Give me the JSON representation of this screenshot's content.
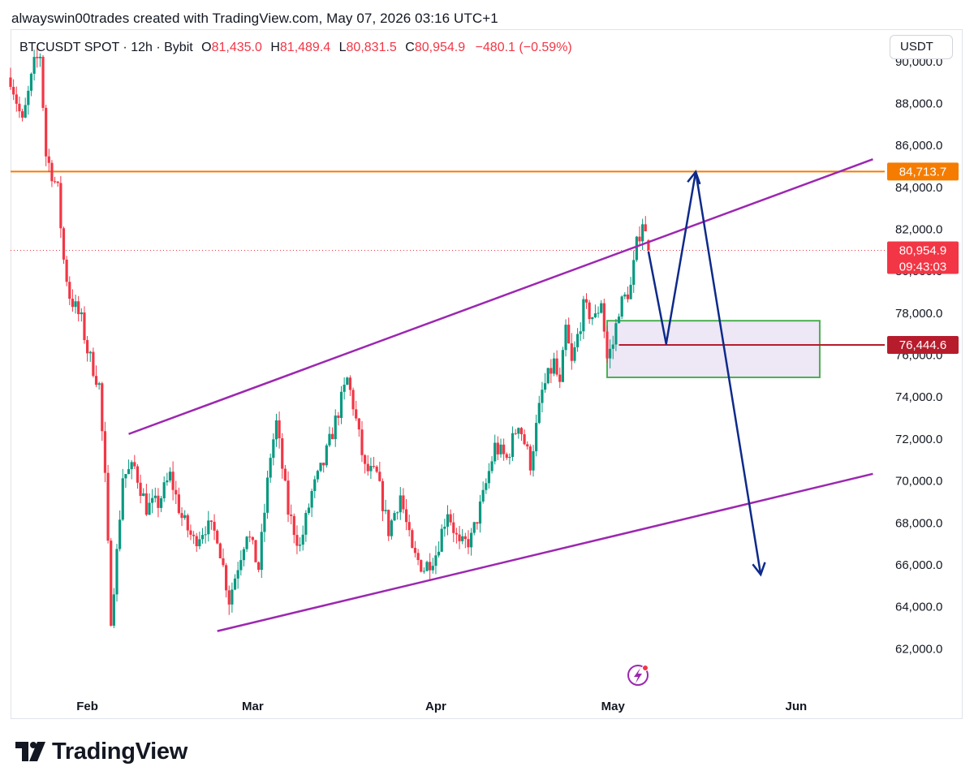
{
  "header": {
    "credit": "alwayswin00trades created with TradingView.com, May 07, 2026 03:16 UTC+1"
  },
  "symbol": {
    "name": "BTCUSDT SPOT · 12h · Bybit",
    "open_label": "O",
    "open": "81,435.0",
    "high_label": "H",
    "high": "81,489.4",
    "low_label": "L",
    "low": "80,831.5",
    "close_label": "C",
    "close": "80,954.9",
    "change": "−480.1 (−0.59%)"
  },
  "currency_button": "USDT",
  "brand": "TradingView",
  "colors": {
    "up": "#089981",
    "down": "#f23645",
    "channel": "#9c27b0",
    "resistance": "#f57c00",
    "support_box": "#4caf50",
    "support_box_fill": "#ede7f6",
    "support_line": "#b71c2c",
    "projection": "#0d2a8a",
    "price_badge": "#f23645"
  },
  "chart_data": {
    "type": "candlestick",
    "interval": "12h",
    "y_range": [
      60000,
      91500
    ],
    "y_ticks": [
      {
        "v": 62000,
        "label": "62,000.0"
      },
      {
        "v": 64000,
        "label": "64,000.0"
      },
      {
        "v": 66000,
        "label": "66,000.0"
      },
      {
        "v": 68000,
        "label": "68,000.0"
      },
      {
        "v": 70000,
        "label": "70,000.0"
      },
      {
        "v": 72000,
        "label": "72,000.0"
      },
      {
        "v": 74000,
        "label": "74,000.0"
      },
      {
        "v": 76000,
        "label": "76,000.0"
      },
      {
        "v": 78000,
        "label": "78,000.0"
      },
      {
        "v": 80000,
        "label": "80,000.0"
      },
      {
        "v": 82000,
        "label": "82,000.0"
      },
      {
        "v": 84000,
        "label": "84,000.0"
      },
      {
        "v": 86000,
        "label": "86,000.0"
      },
      {
        "v": 88000,
        "label": "88,000.0"
      },
      {
        "v": 90000,
        "label": "90,000.0"
      }
    ],
    "x_ticks": [
      {
        "date": "2026-02-01",
        "label": "Feb"
      },
      {
        "date": "2026-03-01",
        "label": "Mar"
      },
      {
        "date": "2026-04-01",
        "label": "Apr"
      },
      {
        "date": "2026-05-01",
        "label": "May"
      },
      {
        "date": "2026-06-01",
        "label": "Jun"
      }
    ],
    "x_range": [
      "2026-01-19",
      "2026-06-16"
    ],
    "price_path": [
      [
        "2026-01-19",
        89200
      ],
      [
        "2026-01-21",
        87000
      ],
      [
        "2026-01-23",
        89800
      ],
      [
        "2026-01-24",
        90300
      ],
      [
        "2026-01-25",
        85500
      ],
      [
        "2026-01-27",
        83800
      ],
      [
        "2026-01-28",
        80500
      ],
      [
        "2026-01-29",
        78800
      ],
      [
        "2026-01-31",
        77600
      ],
      [
        "2026-02-01",
        76200
      ],
      [
        "2026-02-03",
        74500
      ],
      [
        "2026-02-04",
        70000
      ],
      [
        "2026-02-05",
        63500
      ],
      [
        "2026-02-06",
        66500
      ],
      [
        "2026-02-07",
        70200
      ],
      [
        "2026-02-09",
        70600
      ],
      [
        "2026-02-11",
        68700
      ],
      [
        "2026-02-13",
        68900
      ],
      [
        "2026-02-15",
        70200
      ],
      [
        "2026-02-17",
        68200
      ],
      [
        "2026-02-19",
        67100
      ],
      [
        "2026-02-21",
        67800
      ],
      [
        "2026-02-23",
        67400
      ],
      [
        "2026-02-25",
        64300
      ],
      [
        "2026-02-26",
        65400
      ],
      [
        "2026-02-28",
        67600
      ],
      [
        "2026-03-02",
        65800
      ],
      [
        "2026-03-04",
        71200
      ],
      [
        "2026-03-05",
        72700
      ],
      [
        "2026-03-07",
        68500
      ],
      [
        "2026-03-09",
        66800
      ],
      [
        "2026-03-11",
        69400
      ],
      [
        "2026-03-13",
        70800
      ],
      [
        "2026-03-15",
        72800
      ],
      [
        "2026-03-17",
        74800
      ],
      [
        "2026-03-18",
        73600
      ],
      [
        "2026-03-20",
        70500
      ],
      [
        "2026-03-22",
        70200
      ],
      [
        "2026-03-24",
        67600
      ],
      [
        "2026-03-26",
        69300
      ],
      [
        "2026-03-28",
        66500
      ],
      [
        "2026-03-30",
        65800
      ],
      [
        "2026-04-01",
        66500
      ],
      [
        "2026-04-03",
        68600
      ],
      [
        "2026-04-05",
        66800
      ],
      [
        "2026-04-07",
        67200
      ],
      [
        "2026-04-09",
        69200
      ],
      [
        "2026-04-11",
        71600
      ],
      [
        "2026-04-13",
        71000
      ],
      [
        "2026-04-15",
        72800
      ],
      [
        "2026-04-17",
        70800
      ],
      [
        "2026-04-19",
        74200
      ],
      [
        "2026-04-21",
        75600
      ],
      [
        "2026-04-22",
        74400
      ],
      [
        "2026-04-23",
        77200
      ],
      [
        "2026-04-24",
        75500
      ],
      [
        "2026-04-26",
        78200
      ],
      [
        "2026-04-28",
        77700
      ],
      [
        "2026-04-29",
        78600
      ],
      [
        "2026-04-30",
        75800
      ],
      [
        "2026-05-01",
        76500
      ],
      [
        "2026-05-02",
        78200
      ],
      [
        "2026-05-04",
        79200
      ],
      [
        "2026-05-05",
        81200
      ],
      [
        "2026-05-06",
        82400
      ],
      [
        "2026-05-07",
        80955
      ]
    ],
    "ohlc_last": {
      "open": 81435.0,
      "high": 81489.4,
      "low": 80831.5,
      "close": 80954.9
    },
    "drawings": {
      "resistance_line": 84713.7,
      "current_price_line": 80954.9,
      "channel_upper": [
        [
          "2026-02-08",
          72200
        ],
        [
          "2026-06-14",
          85300
        ]
      ],
      "channel_lower": [
        [
          "2026-02-23",
          62800
        ],
        [
          "2026-06-14",
          70300
        ]
      ],
      "support_zone": {
        "from": "2026-04-30",
        "to": "2026-06-05",
        "low": 74900,
        "high": 77600
      },
      "support_line": {
        "from": "2026-05-02",
        "value": 76444.6
      },
      "projection_path": [
        [
          "2026-05-07",
          80900
        ],
        [
          "2026-05-10",
          76500
        ],
        [
          "2026-05-15",
          84700
        ],
        [
          "2026-05-26",
          65500
        ]
      ]
    },
    "price_labels": [
      {
        "value": 84713.7,
        "text": "84,713.7",
        "color": "resistance"
      },
      {
        "value": 80954.9,
        "text": "80,954.9",
        "sub": "09:43:03",
        "color": "price_badge"
      },
      {
        "value": 76444.6,
        "text": "76,444.6",
        "color": "support_line"
      }
    ]
  }
}
